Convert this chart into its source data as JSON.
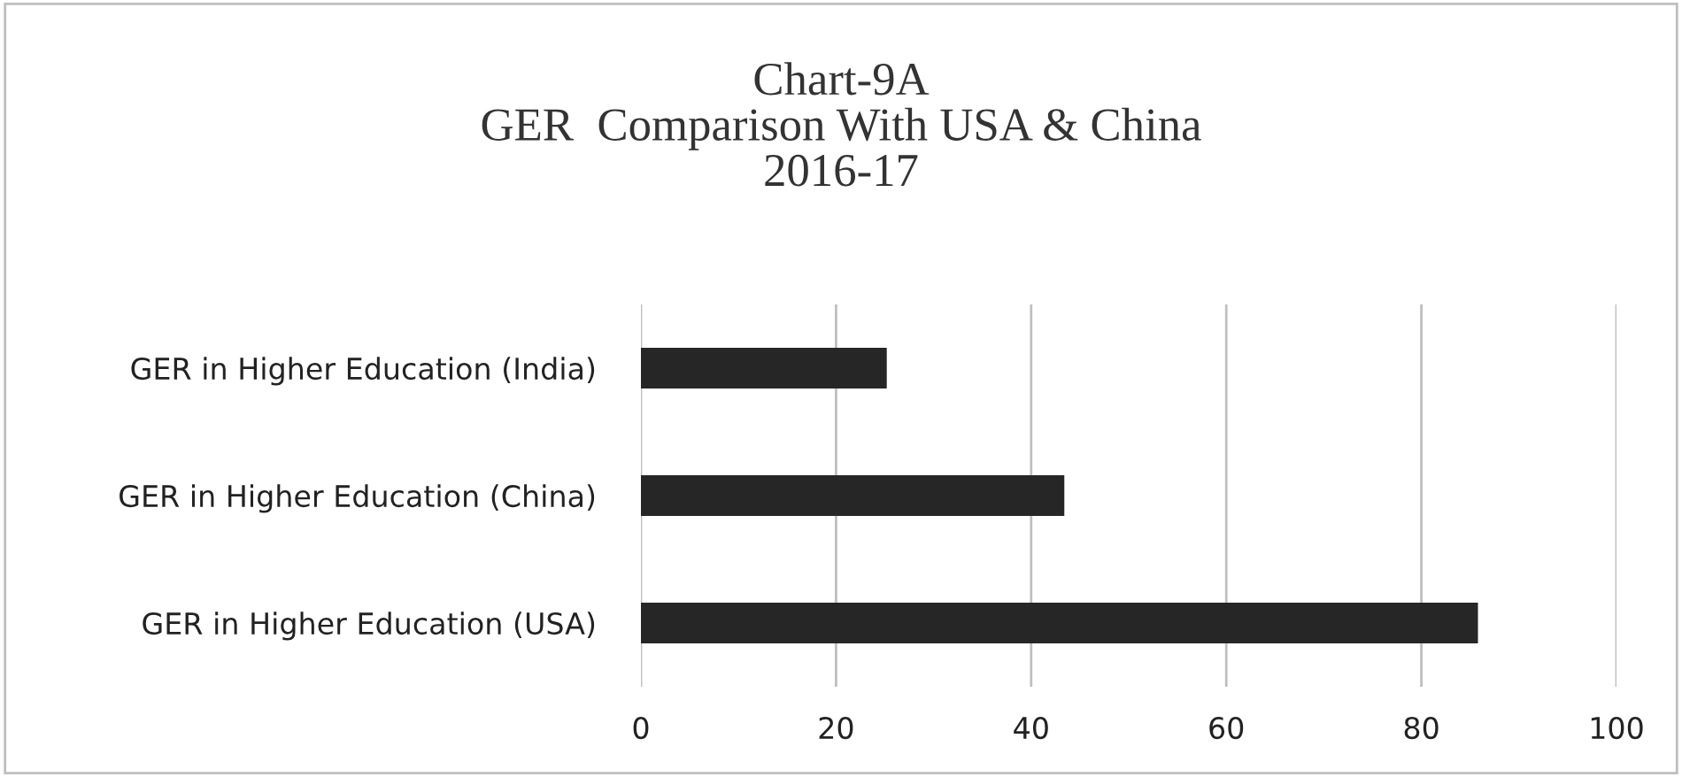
{
  "chart_data": {
    "type": "bar",
    "orientation": "horizontal",
    "title": "Chart-9A\nGER  Comparison With USA & China\n2016-17",
    "categories": [
      "GER in Higher Education (India)",
      "GER in Higher Education (China)",
      "GER in Higher Education (USA)"
    ],
    "values": [
      25.2,
      43.4,
      85.8
    ],
    "color": "#262626",
    "xlim": [
      0,
      100
    ],
    "xticks": [
      0,
      20,
      40,
      60,
      80,
      100
    ],
    "grid": "x",
    "legend": false
  }
}
